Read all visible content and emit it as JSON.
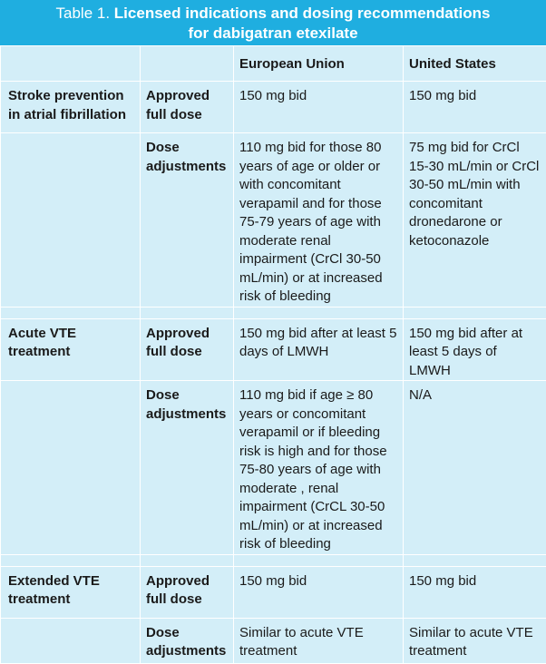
{
  "title": {
    "prefix": "Table 1.",
    "line1": "Licensed indications and dosing recommendations",
    "line2": "for dabigatran etexilate"
  },
  "columns": [
    "",
    "",
    "European Union",
    "United States"
  ],
  "sections": [
    {
      "indication": "Stroke prevention in atrial fibrillation",
      "rows": [
        {
          "type": "Approved full dose",
          "eu": "150 mg bid",
          "us": "150 mg bid"
        },
        {
          "type": "Dose adjustments",
          "eu": "110 mg bid for those 80 years of age or older or with concomitant verapamil and for those 75-79 years of age with moderate renal impairment (CrCl 30-50 mL/min) or at increased risk of bleeding",
          "us": "75 mg bid for CrCl 15-30 mL/min or CrCl 30-50 mL/min with concomitant dronedarone or ketoconazole"
        }
      ]
    },
    {
      "indication": "Acute VTE treatment",
      "rows": [
        {
          "type": "Approved full dose",
          "eu": "150 mg bid after at least 5 days of LMWH",
          "us": "150 mg bid after at least 5 days of LMWH"
        },
        {
          "type": "Dose adjustments",
          "eu": "110 mg bid if age ≥ 80 years or concomitant verapamil or if bleeding risk is high and for those 75-80 years of age with moderate , renal impairment (CrCL 30-50 mL/min) or at increased risk of bleeding",
          "us": "N/A"
        }
      ]
    },
    {
      "indication": "Extended VTE treatment",
      "rows": [
        {
          "type": "Approved full dose",
          "eu": "150 mg bid",
          "us": "150 mg bid"
        },
        {
          "type": "Dose adjustments",
          "eu": "Similar to acute VTE treatment",
          "us": "Similar to acute VTE treatment"
        }
      ]
    }
  ]
}
